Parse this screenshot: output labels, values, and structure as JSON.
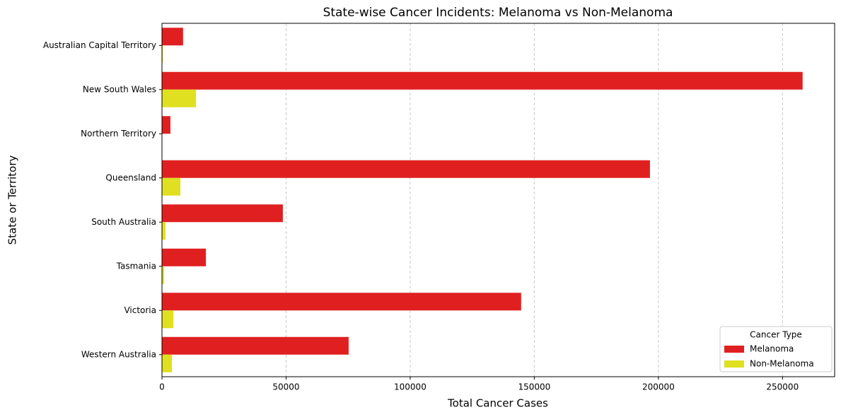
{
  "chart_data": {
    "type": "barh",
    "title": "State-wise Cancer Incidents: Melanoma vs Non-Melanoma",
    "xlabel": "Total Cancer Cases",
    "ylabel": "State or Territory",
    "categories": [
      "Australian Capital Territory",
      "New South Wales",
      "Northern Territory",
      "Queensland",
      "South Australia",
      "Tasmania",
      "Victoria",
      "Western Australia"
    ],
    "series": [
      {
        "name": "Melanoma",
        "color": "#e02020",
        "values": [
          8500,
          258100,
          3400,
          196600,
          48700,
          17700,
          144700,
          75200
        ]
      },
      {
        "name": "Non-Melanoma",
        "color": "#e0e020",
        "values": [
          300,
          13700,
          100,
          7400,
          1400,
          850,
          4600,
          4000
        ]
      }
    ],
    "xlim": [
      0,
      271000
    ],
    "xticks": [
      0,
      50000,
      100000,
      150000,
      200000,
      250000
    ],
    "grid": true,
    "legend_title": "Cancer Type",
    "legend_position": "lower right"
  }
}
